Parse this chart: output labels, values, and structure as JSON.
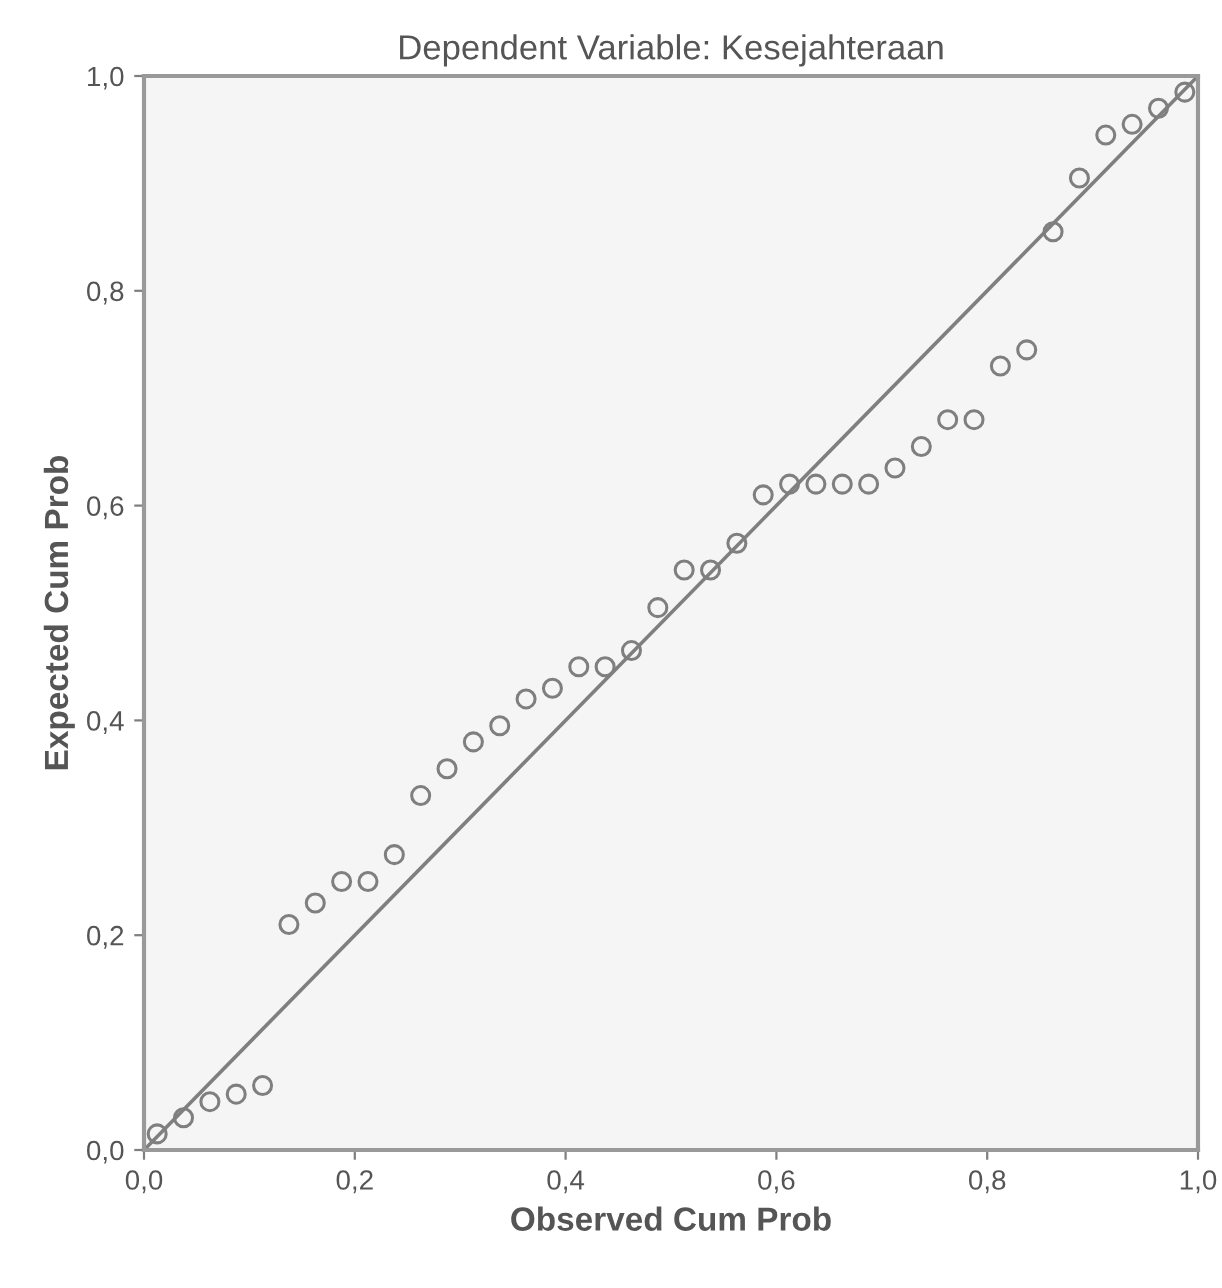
{
  "chart_data": {
    "type": "scatter",
    "title": "Dependent Variable: Kesejahteraan",
    "xlabel": "Observed Cum Prob",
    "ylabel": "Expected Cum Prob",
    "series": [
      {
        "color": "#7f7f7f",
        "marker": "circle",
        "x": [
          0.0125,
          0.0375,
          0.0625,
          0.0875,
          0.1125,
          0.1375,
          0.1625,
          0.1875,
          0.2125,
          0.2375,
          0.2625,
          0.2875,
          0.3125,
          0.3375,
          0.3625,
          0.3875,
          0.4125,
          0.4375,
          0.4625,
          0.4875,
          0.5125,
          0.5375,
          0.5625,
          0.5875,
          0.6125,
          0.6375,
          0.6625,
          0.6875,
          0.7125,
          0.7375,
          0.7625,
          0.7875,
          0.8125,
          0.8375,
          0.8625,
          0.8875,
          0.9125,
          0.9375,
          0.9625,
          0.9875
        ],
        "values": [
          0.015,
          0.03,
          0.045,
          0.052,
          0.06,
          0.21,
          0.23,
          0.25,
          0.25,
          0.275,
          0.33,
          0.355,
          0.38,
          0.395,
          0.42,
          0.43,
          0.45,
          0.45,
          0.465,
          0.505,
          0.54,
          0.54,
          0.565,
          0.61,
          0.62,
          0.62,
          0.62,
          0.62,
          0.635,
          0.655,
          0.68,
          0.68,
          0.73,
          0.745,
          0.855,
          0.905,
          0.945,
          0.955,
          0.97,
          0.985
        ]
      },
      {
        "type": "line",
        "color": "#7f7f7f",
        "marker": "none",
        "line_style": "solid",
        "x": [
          0,
          1
        ],
        "values": [
          0,
          1
        ]
      }
    ],
    "xlim": [
      0,
      1
    ],
    "ylim": [
      0,
      1
    ],
    "xticks": [
      {
        "value": 0,
        "label": "0,0"
      },
      {
        "value": 0.2,
        "label": "0,2"
      },
      {
        "value": 0.4,
        "label": "0,4"
      },
      {
        "value": 0.6,
        "label": "0,6"
      },
      {
        "value": 0.8,
        "label": "0,8"
      },
      {
        "value": 1,
        "label": "1,0"
      }
    ],
    "yticks": [
      {
        "value": 0,
        "label": "0,0"
      },
      {
        "value": 0.2,
        "label": "0,2"
      },
      {
        "value": 0.4,
        "label": "0,4"
      },
      {
        "value": 0.6,
        "label": "0,6"
      },
      {
        "value": 0.8,
        "label": "0,8"
      },
      {
        "value": 1,
        "label": "1,0"
      }
    ],
    "grid": false,
    "legend": false
  }
}
